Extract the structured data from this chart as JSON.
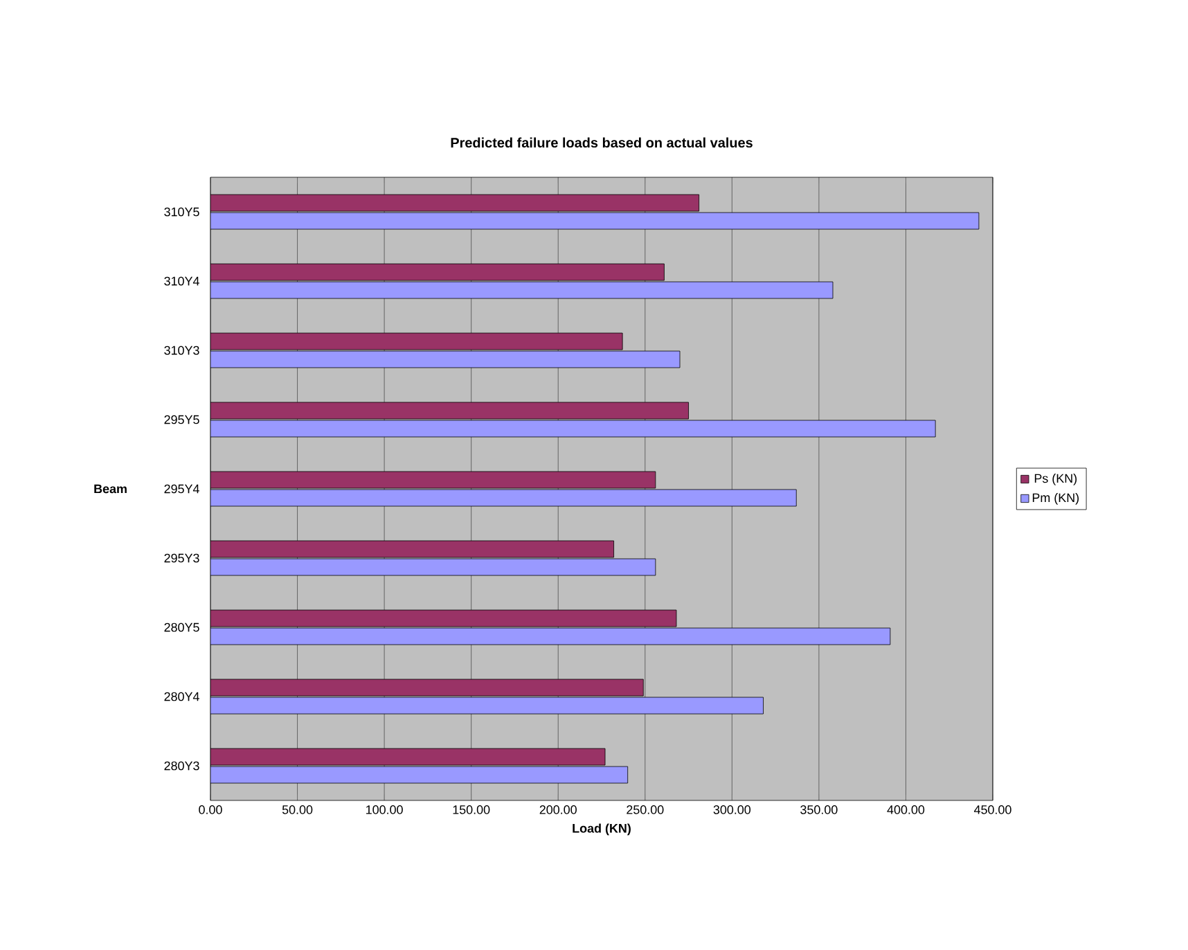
{
  "chart_data": {
    "type": "bar",
    "orientation": "horizontal",
    "title": "Predicted failure loads based on actual values",
    "xlabel": "Load (KN)",
    "ylabel": "Beam",
    "categories": [
      "310Y5",
      "310Y4",
      "310Y3",
      "295Y5",
      "295Y4",
      "295Y3",
      "280Y5",
      "280Y4",
      "280Y3"
    ],
    "series": [
      {
        "name": "Ps (KN)",
        "color": "#993366",
        "values": [
          281,
          261,
          237,
          275,
          256,
          232,
          268,
          249,
          227
        ]
      },
      {
        "name": "Pm (KN)",
        "color": "#9999ff",
        "values": [
          442,
          358,
          270,
          417,
          337,
          256,
          391,
          318,
          240
        ]
      }
    ],
    "xlim": [
      0,
      450
    ],
    "xticks": [
      {
        "value": 0,
        "label": "0.00"
      },
      {
        "value": 50,
        "label": "50.00"
      },
      {
        "value": 100,
        "label": "100.00"
      },
      {
        "value": 150,
        "label": "150.00"
      },
      {
        "value": 200,
        "label": "200.00"
      },
      {
        "value": 250,
        "label": "250.00"
      },
      {
        "value": 300,
        "label": "300.00"
      },
      {
        "value": 350,
        "label": "350.00"
      },
      {
        "value": 400,
        "label": "400.00"
      },
      {
        "value": 450,
        "label": "450.00"
      }
    ],
    "grid": "x",
    "legend": "right"
  }
}
